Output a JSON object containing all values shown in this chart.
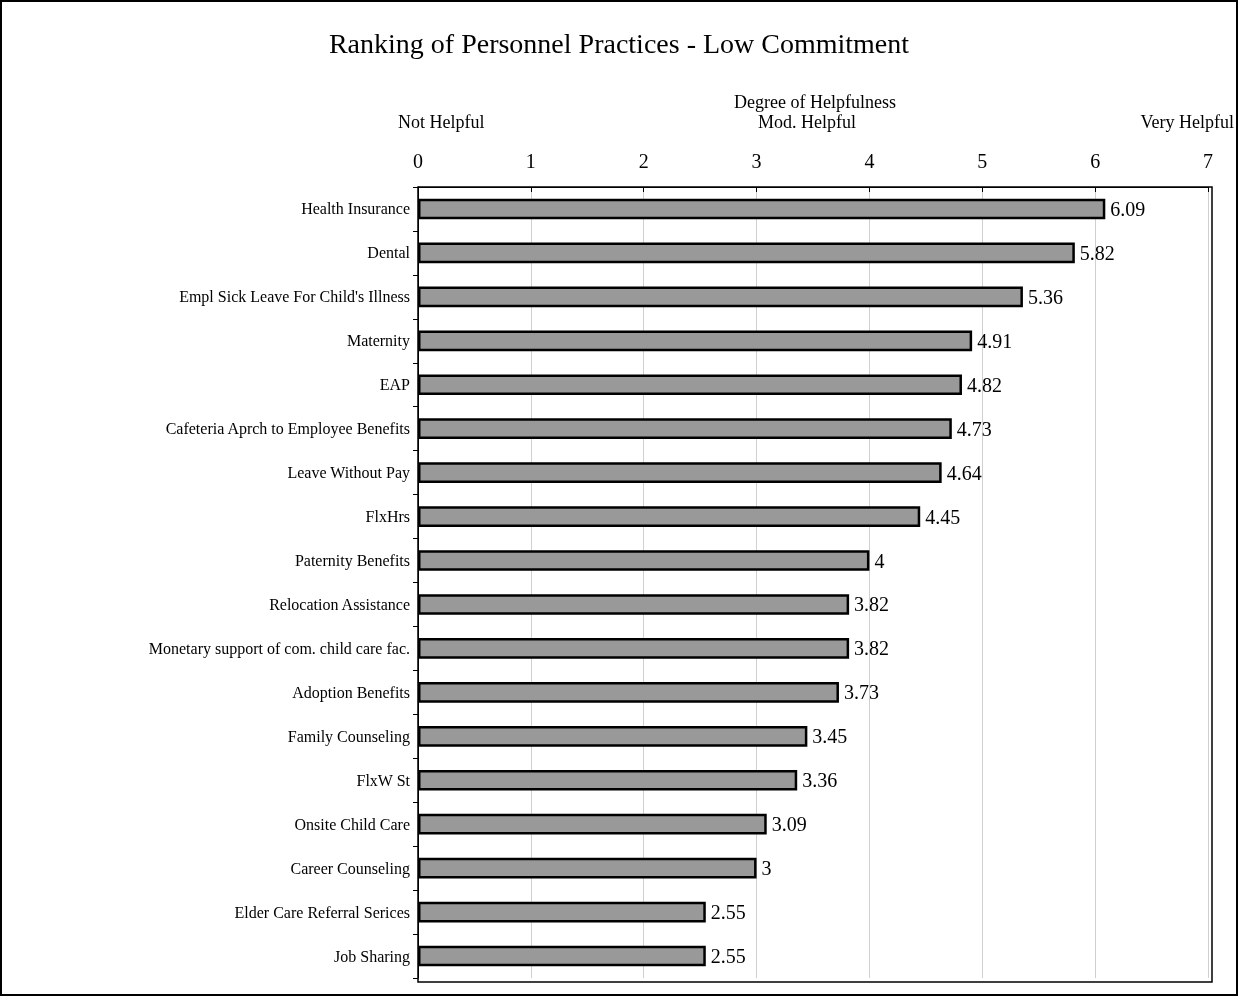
{
  "chart_data": {
    "type": "bar",
    "orientation": "horizontal",
    "title": "Ranking of Personnel Practices - Low Commitment",
    "xlabel": "Degree of Helpfulness",
    "annotations": [
      "Not Helpful",
      "Mod. Helpful",
      "Very Helpful"
    ],
    "categories": [
      "Health Insurance",
      "Dental",
      "Empl Sick Leave For Child's Illness",
      "Maternity",
      "EAP",
      "Cafeteria Aprch to Employee Benefits",
      "Leave Without Pay",
      "FlxHrs",
      "Paternity Benefits",
      "Relocation Assistance",
      "Monetary support of com. child care fac.",
      "Adoption Benefits",
      "Family Counseling",
      "FlxW St",
      "Onsite Child Care",
      "Career Counseling",
      "Elder Care Referral Serices",
      "Job Sharing"
    ],
    "values": [
      6.09,
      5.82,
      5.36,
      4.91,
      4.82,
      4.73,
      4.64,
      4.45,
      4,
      3.82,
      3.82,
      3.73,
      3.45,
      3.36,
      3.09,
      3,
      2.55,
      2.55
    ],
    "color": "#999999",
    "xlim": [
      0,
      7
    ],
    "xticks": [
      0,
      1,
      2,
      3,
      4,
      5,
      6,
      7
    ],
    "grid": "x",
    "data_labels": true
  }
}
